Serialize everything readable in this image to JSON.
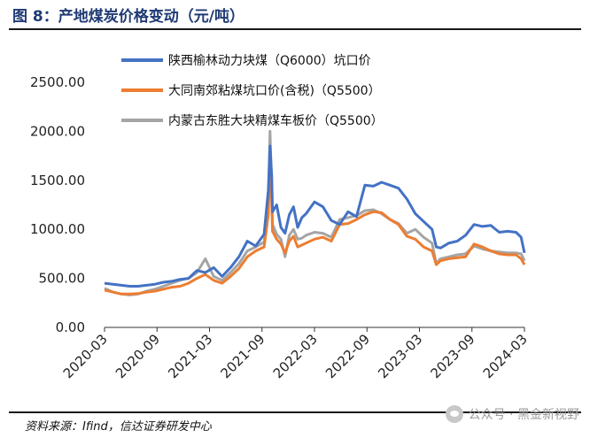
{
  "figure": {
    "title": "图 8：产地煤炭价格变动（元/吨）",
    "source": "资料来源：Ifind，信达证券研发中心",
    "watermark": "公众号 · 黑金新视野"
  },
  "chart_data": {
    "type": "line",
    "ylim": [
      0,
      2500
    ],
    "yticks": [
      "0.00",
      "500.00",
      "1000.00",
      "1500.00",
      "2000.00",
      "2500.00"
    ],
    "xticks": [
      "2020-03",
      "2020-09",
      "2021-03",
      "2021-09",
      "2022-03",
      "2022-09",
      "2023-03",
      "2023-09",
      "2024-03"
    ],
    "grid": false,
    "legend_position": "top",
    "series": [
      {
        "name": "陕西榆林动力块煤（Q6000）坑口价",
        "color": "#4472c4",
        "points": [
          [
            0,
            450
          ],
          [
            1,
            440
          ],
          [
            2,
            430
          ],
          [
            3,
            420
          ],
          [
            4,
            420
          ],
          [
            5,
            430
          ],
          [
            6,
            440
          ],
          [
            7,
            460
          ],
          [
            8,
            470
          ],
          [
            9,
            490
          ],
          [
            10,
            500
          ],
          [
            11,
            580
          ],
          [
            12,
            560
          ],
          [
            13,
            610
          ],
          [
            14,
            520
          ],
          [
            15,
            610
          ],
          [
            16,
            720
          ],
          [
            17,
            880
          ],
          [
            18,
            830
          ],
          [
            19,
            950
          ],
          [
            19.5,
            1400
          ],
          [
            19.7,
            1850
          ],
          [
            19.9,
            1550
          ],
          [
            20,
            1180
          ],
          [
            20.5,
            1250
          ],
          [
            21,
            1020
          ],
          [
            21.5,
            960
          ],
          [
            22,
            1150
          ],
          [
            22.5,
            1230
          ],
          [
            23,
            1020
          ],
          [
            23.5,
            1120
          ],
          [
            24,
            1160
          ],
          [
            25,
            1280
          ],
          [
            26,
            1230
          ],
          [
            27,
            1090
          ],
          [
            28,
            1050
          ],
          [
            29,
            1180
          ],
          [
            30,
            1130
          ],
          [
            31,
            1450
          ],
          [
            32,
            1440
          ],
          [
            33,
            1480
          ],
          [
            34,
            1450
          ],
          [
            35,
            1420
          ],
          [
            36,
            1310
          ],
          [
            37,
            1160
          ],
          [
            38,
            1080
          ],
          [
            39,
            1000
          ],
          [
            39.5,
            820
          ],
          [
            40,
            810
          ],
          [
            41,
            860
          ],
          [
            42,
            880
          ],
          [
            43,
            940
          ],
          [
            44,
            1050
          ],
          [
            45,
            1030
          ],
          [
            46,
            1040
          ],
          [
            47,
            970
          ],
          [
            48,
            980
          ],
          [
            49,
            970
          ],
          [
            49.6,
            920
          ],
          [
            50,
            760
          ]
        ]
      },
      {
        "name": "大同南郊粘煤坑口价(含税)（Q5500）",
        "color": "#ed7d31",
        "points": [
          [
            0,
            380
          ],
          [
            1,
            360
          ],
          [
            2,
            340
          ],
          [
            3,
            340
          ],
          [
            4,
            345
          ],
          [
            5,
            360
          ],
          [
            6,
            370
          ],
          [
            7,
            390
          ],
          [
            8,
            410
          ],
          [
            9,
            420
          ],
          [
            10,
            450
          ],
          [
            11,
            500
          ],
          [
            12,
            540
          ],
          [
            13,
            480
          ],
          [
            14,
            450
          ],
          [
            15,
            520
          ],
          [
            16,
            600
          ],
          [
            17,
            720
          ],
          [
            18,
            780
          ],
          [
            19,
            820
          ],
          [
            19.5,
            1150
          ],
          [
            19.7,
            1680
          ],
          [
            19.9,
            1300
          ],
          [
            20,
            980
          ],
          [
            20.5,
            900
          ],
          [
            21,
            850
          ],
          [
            21.5,
            760
          ],
          [
            22,
            880
          ],
          [
            22.5,
            930
          ],
          [
            23,
            820
          ],
          [
            23.5,
            840
          ],
          [
            24,
            860
          ],
          [
            25,
            900
          ],
          [
            26,
            920
          ],
          [
            27,
            880
          ],
          [
            28,
            1050
          ],
          [
            29,
            1060
          ],
          [
            30,
            1100
          ],
          [
            31,
            1150
          ],
          [
            32,
            1180
          ],
          [
            33,
            1170
          ],
          [
            34,
            1100
          ],
          [
            35,
            1050
          ],
          [
            36,
            930
          ],
          [
            37,
            900
          ],
          [
            38,
            820
          ],
          [
            39,
            780
          ],
          [
            39.5,
            640
          ],
          [
            40,
            680
          ],
          [
            41,
            700
          ],
          [
            42,
            710
          ],
          [
            43,
            720
          ],
          [
            44,
            850
          ],
          [
            45,
            820
          ],
          [
            46,
            780
          ],
          [
            47,
            750
          ],
          [
            48,
            740
          ],
          [
            49,
            740
          ],
          [
            49.6,
            700
          ],
          [
            50,
            640
          ]
        ]
      },
      {
        "name": "内蒙古东胜大块精煤车板价（Q5500）",
        "color": "#a5a5a5",
        "points": [
          [
            0,
            400
          ],
          [
            1,
            360
          ],
          [
            2,
            340
          ],
          [
            3,
            330
          ],
          [
            4,
            340
          ],
          [
            5,
            370
          ],
          [
            6,
            390
          ],
          [
            7,
            420
          ],
          [
            8,
            450
          ],
          [
            9,
            480
          ],
          [
            10,
            500
          ],
          [
            11,
            560
          ],
          [
            12,
            700
          ],
          [
            13,
            520
          ],
          [
            14,
            480
          ],
          [
            15,
            560
          ],
          [
            16,
            650
          ],
          [
            17,
            780
          ],
          [
            18,
            820
          ],
          [
            19,
            870
          ],
          [
            19.5,
            1300
          ],
          [
            19.7,
            2000
          ],
          [
            19.9,
            1420
          ],
          [
            20,
            1050
          ],
          [
            20.5,
            950
          ],
          [
            21,
            900
          ],
          [
            21.5,
            720
          ],
          [
            22,
            940
          ],
          [
            22.5,
            1000
          ],
          [
            23,
            900
          ],
          [
            23.5,
            910
          ],
          [
            24,
            940
          ],
          [
            25,
            970
          ],
          [
            26,
            960
          ],
          [
            27,
            920
          ],
          [
            28,
            1100
          ],
          [
            29,
            1120
          ],
          [
            30,
            1140
          ],
          [
            31,
            1190
          ],
          [
            32,
            1200
          ],
          [
            33,
            1160
          ],
          [
            34,
            1100
          ],
          [
            35,
            1060
          ],
          [
            36,
            960
          ],
          [
            37,
            1000
          ],
          [
            38,
            920
          ],
          [
            39,
            860
          ],
          [
            39.5,
            650
          ],
          [
            40,
            700
          ],
          [
            41,
            720
          ],
          [
            42,
            740
          ],
          [
            43,
            750
          ],
          [
            44,
            830
          ],
          [
            45,
            800
          ],
          [
            46,
            780
          ],
          [
            47,
            770
          ],
          [
            48,
            760
          ],
          [
            49,
            760
          ],
          [
            49.6,
            750
          ],
          [
            50,
            680
          ]
        ]
      }
    ]
  }
}
